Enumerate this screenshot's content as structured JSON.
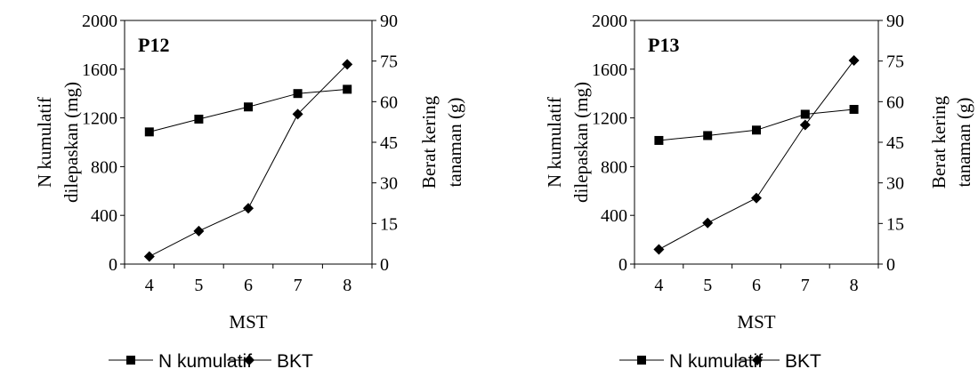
{
  "chart_data": [
    {
      "type": "line",
      "panel_label": "P12",
      "x": [
        4,
        5,
        6,
        7,
        8
      ],
      "xlabel": "MST",
      "ylabel_left": [
        "N kumulatif",
        "dilepaskan  (mg)"
      ],
      "ylabel_right": [
        "Berat kering",
        "tanaman (g)"
      ],
      "ylim_left": [
        0,
        2000
      ],
      "ylim_right": [
        0,
        90
      ],
      "yticks_left": [
        "0",
        "400",
        "800",
        "1200",
        "1600",
        "2000"
      ],
      "yticks_right": [
        "0",
        "15",
        "30",
        "45",
        "60",
        "75",
        "90"
      ],
      "xticks": [
        "4",
        "5",
        "6",
        "7",
        "8"
      ],
      "grid": false,
      "legend_position": "bottom",
      "series": [
        {
          "name": "N kumulatif",
          "axis": "left",
          "marker": "square",
          "values": [
            1085,
            1190,
            1290,
            1400,
            1435
          ]
        },
        {
          "name": "BKT",
          "axis": "right",
          "marker": "diamond",
          "values": [
            2.8,
            12.2,
            20.6,
            55.4,
            73.8
          ]
        }
      ]
    },
    {
      "type": "line",
      "panel_label": "P13",
      "x": [
        4,
        5,
        6,
        7,
        8
      ],
      "xlabel": "MST",
      "ylabel_left": [
        "N kumulatif",
        "dilepaskan  (mg)"
      ],
      "ylabel_right": [
        "Berat kering",
        "tanaman (g)"
      ],
      "ylim_left": [
        0,
        2000
      ],
      "ylim_right": [
        0,
        90
      ],
      "yticks_left": [
        "0",
        "400",
        "800",
        "1200",
        "1600",
        "2000"
      ],
      "yticks_right": [
        "0",
        "15",
        "30",
        "45",
        "60",
        "75",
        "90"
      ],
      "xticks": [
        "4",
        "5",
        "6",
        "7",
        "8"
      ],
      "grid": false,
      "legend_position": "bottom",
      "series": [
        {
          "name": "N kumulatif",
          "axis": "left",
          "marker": "square",
          "values": [
            1015,
            1055,
            1100,
            1230,
            1270
          ]
        },
        {
          "name": "BKT",
          "axis": "right",
          "marker": "diamond",
          "values": [
            5.4,
            15.2,
            24.4,
            51.4,
            75.2
          ]
        }
      ]
    }
  ],
  "colors": {
    "ink": "#000000",
    "background": "#ffffff"
  }
}
